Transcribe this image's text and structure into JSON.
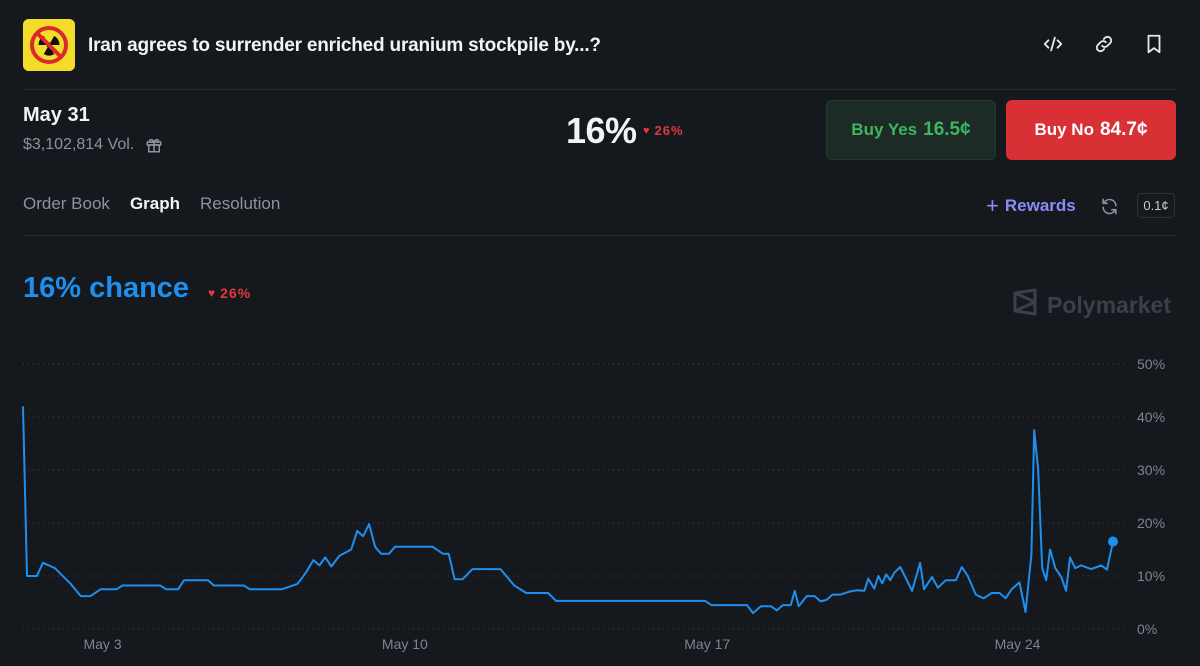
{
  "header": {
    "logo_icon": "radiation-prohibited-icon",
    "title": "Iran agrees to surrender enriched uranium stockpile by...?",
    "embed_icon": "code-embed-icon",
    "link_icon": "link-icon",
    "bookmark_icon": "bookmark-icon"
  },
  "market": {
    "date": "May 31",
    "volume": "$3,102,814 Vol.",
    "gift_icon": "gift-icon",
    "percent": "16%",
    "change": "26%",
    "change_direction": "down",
    "buy_yes_label": "Buy Yes",
    "buy_yes_price": "16.5¢",
    "buy_no_label": "Buy No",
    "buy_no_price": "84.7¢"
  },
  "tabs": [
    {
      "label": "Order Book",
      "active": false
    },
    {
      "label": "Graph",
      "active": true
    },
    {
      "label": "Resolution",
      "active": false
    }
  ],
  "toolbar": {
    "rewards_plus": "+",
    "rewards_label": "Rewards",
    "refresh_icon": "refresh-icon",
    "tick_size": "0.1¢"
  },
  "chart_header": {
    "chance": "16% chance",
    "change": "26%",
    "watermark": "Polymarket"
  },
  "colors": {
    "background": "#15181d",
    "line": "#1e8fef",
    "down": "#e0393e",
    "yes": "#3fb560",
    "no": "#d93036",
    "rewards": "#8b8cf7"
  },
  "chart_data": {
    "type": "line",
    "series": [
      {
        "values": [
          [
            0.0,
            42
          ],
          [
            0.1,
            10
          ],
          [
            0.35,
            10
          ],
          [
            0.5,
            12.5
          ],
          [
            0.8,
            11.5
          ],
          [
            1.2,
            8.5
          ],
          [
            1.45,
            6.2
          ],
          [
            1.7,
            6.2
          ],
          [
            1.95,
            7.5
          ],
          [
            2.35,
            7.5
          ],
          [
            2.5,
            8.2
          ],
          [
            3.45,
            8.2
          ],
          [
            3.6,
            7.5
          ],
          [
            3.9,
            7.5
          ],
          [
            4.05,
            9.2
          ],
          [
            4.65,
            9.2
          ],
          [
            4.8,
            8.2
          ],
          [
            5.55,
            8.2
          ],
          [
            5.7,
            7.5
          ],
          [
            6.5,
            7.5
          ],
          [
            6.9,
            8.5
          ],
          [
            7.1,
            10.5
          ],
          [
            7.3,
            13
          ],
          [
            7.45,
            12
          ],
          [
            7.6,
            13.5
          ],
          [
            7.75,
            11.8
          ],
          [
            7.95,
            13.8
          ],
          [
            8.25,
            15
          ],
          [
            8.4,
            18.5
          ],
          [
            8.55,
            17.5
          ],
          [
            8.7,
            19.8
          ],
          [
            8.85,
            15.5
          ],
          [
            9.0,
            14.2
          ],
          [
            9.2,
            14.2
          ],
          [
            9.35,
            15.5
          ],
          [
            10.3,
            15.5
          ],
          [
            10.55,
            14.2
          ],
          [
            10.7,
            14.2
          ],
          [
            10.85,
            9.4
          ],
          [
            11.05,
            9.4
          ],
          [
            11.3,
            11.3
          ],
          [
            12.0,
            11.3
          ],
          [
            12.15,
            10
          ],
          [
            12.35,
            8.2
          ],
          [
            12.65,
            6.8
          ],
          [
            13.2,
            6.8
          ],
          [
            13.4,
            5.3
          ],
          [
            15.0,
            5.3
          ],
          [
            17.15,
            5.3
          ],
          [
            17.3,
            4.5
          ],
          [
            18.2,
            4.5
          ],
          [
            18.35,
            3
          ],
          [
            18.55,
            4.3
          ],
          [
            18.8,
            4.3
          ],
          [
            18.95,
            3.5
          ],
          [
            19.1,
            4.5
          ],
          [
            19.3,
            4.5
          ],
          [
            19.4,
            7.2
          ],
          [
            19.5,
            4.3
          ],
          [
            19.7,
            6.2
          ],
          [
            19.9,
            6.2
          ],
          [
            20.05,
            5.2
          ],
          [
            20.2,
            5.5
          ],
          [
            20.35,
            6.5
          ],
          [
            20.55,
            6.5
          ],
          [
            20.75,
            7
          ],
          [
            20.95,
            7.3
          ],
          [
            21.15,
            7.2
          ],
          [
            21.25,
            9.5
          ],
          [
            21.4,
            7.6
          ],
          [
            21.5,
            10
          ],
          [
            21.6,
            8.6
          ],
          [
            21.7,
            10.3
          ],
          [
            21.8,
            9.2
          ],
          [
            21.9,
            10.6
          ],
          [
            22.05,
            11.7
          ],
          [
            22.2,
            9.5
          ],
          [
            22.35,
            7.2
          ],
          [
            22.55,
            12.5
          ],
          [
            22.65,
            7.5
          ],
          [
            22.85,
            9.8
          ],
          [
            23.0,
            7.8
          ],
          [
            23.2,
            9.2
          ],
          [
            23.45,
            9.2
          ],
          [
            23.6,
            11.7
          ],
          [
            23.75,
            10
          ],
          [
            23.95,
            6.5
          ],
          [
            24.15,
            5.8
          ],
          [
            24.35,
            6.8
          ],
          [
            24.55,
            6.8
          ],
          [
            24.7,
            5.8
          ],
          [
            24.85,
            7.5
          ],
          [
            25.05,
            8.8
          ],
          [
            25.2,
            3.2
          ],
          [
            25.35,
            14
          ],
          [
            25.42,
            37.5
          ],
          [
            25.52,
            30
          ],
          [
            25.62,
            11.5
          ],
          [
            25.72,
            9.2
          ],
          [
            25.82,
            15
          ],
          [
            25.95,
            11.5
          ],
          [
            26.1,
            9.8
          ],
          [
            26.22,
            7.2
          ],
          [
            26.32,
            13.5
          ],
          [
            26.45,
            11.5
          ],
          [
            26.6,
            12
          ],
          [
            26.85,
            11.3
          ],
          [
            27.1,
            12
          ],
          [
            27.25,
            11.2
          ],
          [
            27.4,
            16.5
          ]
        ]
      }
    ],
    "x_unit": "days since Apr 29",
    "x_ticks": [
      {
        "x": 2,
        "label": "May 3"
      },
      {
        "x": 9.6,
        "label": "May 10"
      },
      {
        "x": 17.2,
        "label": "May 17"
      },
      {
        "x": 25,
        "label": "May 24"
      }
    ],
    "y_ticks": [
      "0%",
      "10%",
      "20%",
      "30%",
      "40%",
      "50%"
    ],
    "ylim": [
      0,
      50
    ],
    "xlim": [
      0,
      27.4
    ],
    "grid": "dotted horizontal",
    "last_point_marker": true
  }
}
